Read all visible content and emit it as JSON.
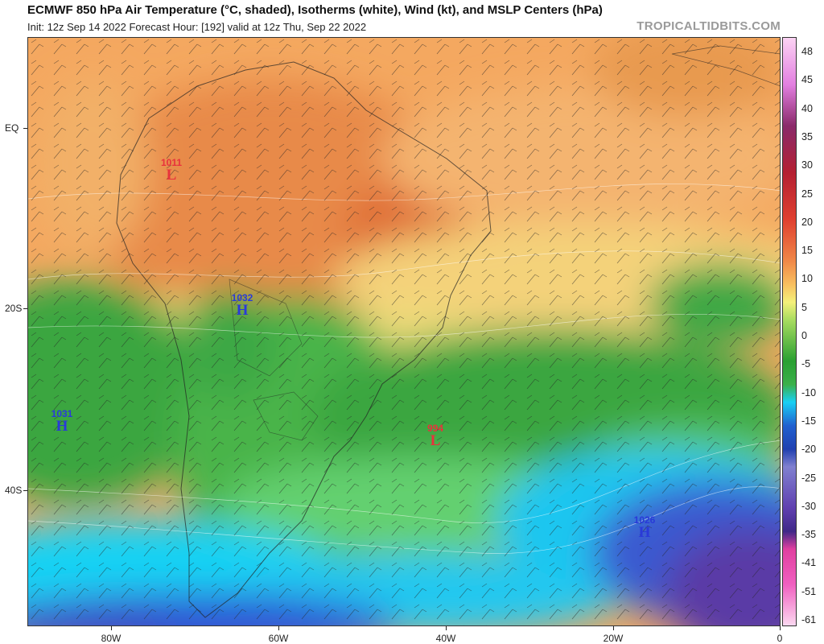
{
  "header": {
    "title": "ECMWF 850 hPa Air Temperature (°C, shaded), Isotherms (white), Wind (kt), and MSLP Centers (hPa)",
    "subtitle": "Init: 12z Sep 14 2022   Forecast Hour: [192]   valid at 12z Thu, Sep 22 2022",
    "credit": "TROPICALTIDBITS.COM"
  },
  "axes": {
    "lat_labels": [
      "EQ",
      "20S",
      "40S"
    ],
    "lon_labels": [
      "80W",
      "60W",
      "40W",
      "20W",
      "0"
    ]
  },
  "colorbar": {
    "labels": [
      "48",
      "45",
      "40",
      "35",
      "30",
      "25",
      "20",
      "15",
      "10",
      "5",
      "0",
      "-5",
      "-10",
      "-15",
      "-20",
      "-25",
      "-30",
      "-35",
      "-41",
      "-51",
      "-61"
    ]
  },
  "pressure_centers": [
    {
      "type": "low",
      "symbol": "L",
      "value": "1011"
    },
    {
      "type": "high",
      "symbol": "H",
      "value": "1032"
    },
    {
      "type": "high",
      "symbol": "H",
      "value": "1031"
    },
    {
      "type": "low",
      "symbol": "L",
      "value": "994"
    },
    {
      "type": "high",
      "symbol": "H",
      "value": "1026"
    }
  ],
  "colors": {
    "warm": "#e8904a",
    "mild": "#f4c06a",
    "green": "#3aa640",
    "light_green": "#64d070",
    "cyan": "#18d2f4",
    "blue": "#2f55d6",
    "purple": "#5a3aa6",
    "high": "#2a3ad8",
    "low": "#e8323c"
  }
}
